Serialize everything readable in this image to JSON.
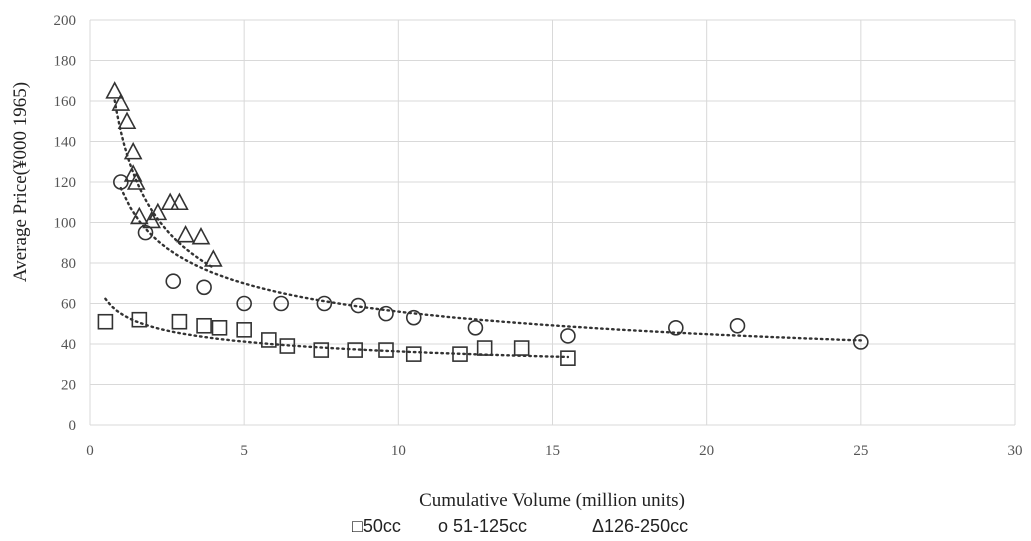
{
  "chart_data": {
    "type": "scatter",
    "xlabel": "Cumulative Volume (million units)",
    "ylabel": "Average Price(¥000 1965)",
    "xlim": [
      0,
      30
    ],
    "ylim": [
      0,
      200
    ],
    "xticks": [
      0,
      5,
      10,
      15,
      20,
      25,
      30
    ],
    "yticks": [
      0,
      20,
      40,
      60,
      80,
      100,
      120,
      140,
      160,
      180,
      200
    ],
    "grid": true,
    "legend_position": "bottom",
    "series": [
      {
        "name": "50cc",
        "legend_label": "□50cc",
        "marker": "square",
        "color": "#333333",
        "points": [
          [
            0.5,
            51
          ],
          [
            1.6,
            52
          ],
          [
            2.9,
            51
          ],
          [
            3.7,
            49
          ],
          [
            4.2,
            48
          ],
          [
            5.0,
            47
          ],
          [
            5.8,
            42
          ],
          [
            6.4,
            39
          ],
          [
            7.5,
            37
          ],
          [
            8.6,
            37
          ],
          [
            9.6,
            37
          ],
          [
            10.5,
            35
          ],
          [
            12.0,
            35
          ],
          [
            12.8,
            38
          ],
          [
            14.0,
            38
          ],
          [
            15.5,
            33
          ]
        ],
        "trendline": {
          "kind": "power",
          "a": 55.0,
          "b": -0.18,
          "x_range": [
            0.5,
            15.5
          ]
        }
      },
      {
        "name": "51-125cc",
        "legend_label": "o 51-125cc",
        "marker": "circle",
        "color": "#333333",
        "points": [
          [
            1.0,
            120
          ],
          [
            1.8,
            95
          ],
          [
            2.7,
            71
          ],
          [
            3.7,
            68
          ],
          [
            5.0,
            60
          ],
          [
            6.2,
            60
          ],
          [
            7.6,
            60
          ],
          [
            8.7,
            59
          ],
          [
            9.6,
            55
          ],
          [
            10.5,
            53
          ],
          [
            12.5,
            48
          ],
          [
            15.5,
            44
          ],
          [
            19.0,
            48
          ],
          [
            21.0,
            49
          ],
          [
            25.0,
            41
          ]
        ],
        "trendline": {
          "kind": "power",
          "a": 117.0,
          "b": -0.32,
          "x_range": [
            1.0,
            25.0
          ]
        }
      },
      {
        "name": "126-250cc",
        "legend_label": "Δ126-250cc",
        "marker": "triangle",
        "color": "#333333",
        "points": [
          [
            0.8,
            165
          ],
          [
            1.0,
            159
          ],
          [
            1.2,
            150
          ],
          [
            1.4,
            135
          ],
          [
            1.4,
            124
          ],
          [
            1.5,
            120
          ],
          [
            1.6,
            103
          ],
          [
            2.0,
            101
          ],
          [
            2.2,
            105
          ],
          [
            2.6,
            110
          ],
          [
            2.9,
            110
          ],
          [
            3.1,
            94
          ],
          [
            3.6,
            93
          ],
          [
            4.0,
            82
          ]
        ],
        "trendline": {
          "kind": "power",
          "a": 145.0,
          "b": -0.45,
          "x_range": [
            0.8,
            4.0
          ]
        }
      }
    ]
  }
}
